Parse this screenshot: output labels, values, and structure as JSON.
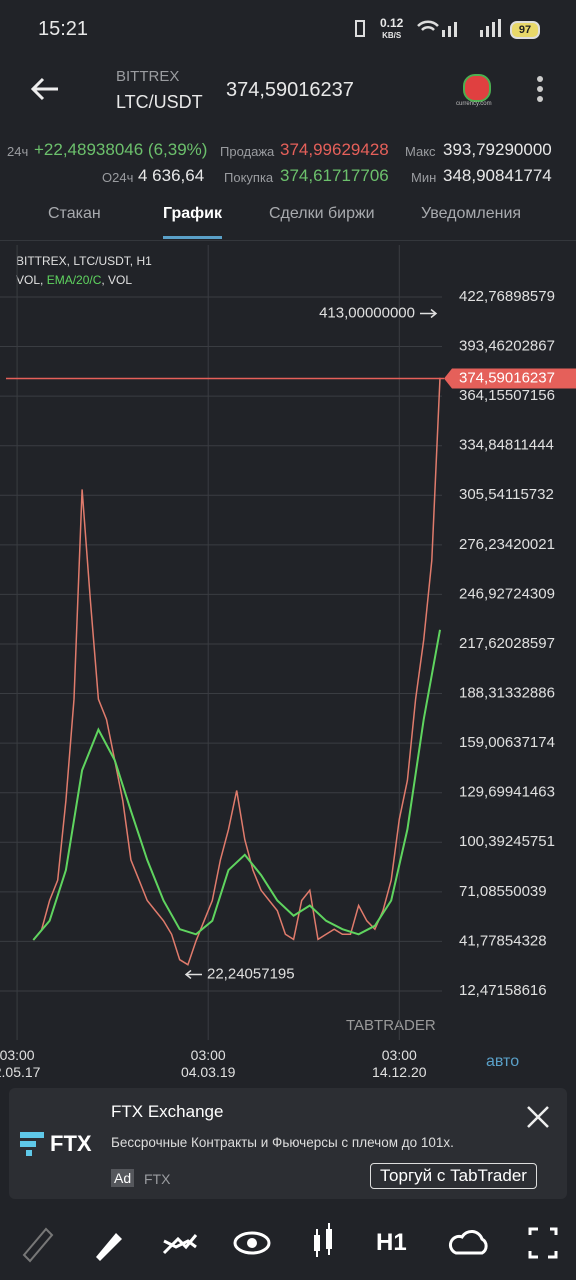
{
  "status": {
    "time": "15:21",
    "speed": "0.12",
    "speed_unit": "KB/S",
    "battery": "97"
  },
  "header": {
    "exchange": "BITTREX",
    "pair": "LTC/USDT",
    "price": "374,59016237",
    "logo_text": "currency.com"
  },
  "stats": {
    "change_label": "24ч",
    "change": "+22,48938046 (6,39%)",
    "sell_label": "Продажа",
    "sell": "374,99629428",
    "max_label": "Макс",
    "max": "393,79290000",
    "volume_label": "О24ч",
    "volume": "4 636,64",
    "buy_label": "Покупка",
    "buy": "374,61717706",
    "min_label": "Мин",
    "min": "348,90841774"
  },
  "tabs": {
    "items": [
      "Стакан",
      "График",
      "Сделки биржи",
      "Уведомления"
    ],
    "active": 1
  },
  "chart_data": {
    "type": "line",
    "legend_line1": "BITTREX, LTC/USDT, H1",
    "legend_vol": "VOL, ",
    "legend_ema": "EMA/20/C",
    "legend_vol2": ", VOL",
    "watermark": "TABTRADER",
    "scale_mode": "авто",
    "xlim": [
      -4.2,
      104.5
    ],
    "xticks": [
      {
        "value": 0,
        "label": "03:00\n2.05.17"
      },
      {
        "value": 47,
        "label": "03:00\n04.03.19"
      },
      {
        "value": 94,
        "label": "03:00\n14.12.20"
      }
    ],
    "ylim": [
      -16.5,
      453.5
    ],
    "yticks": [
      {
        "value": 422.76898579,
        "label": "422,76898579"
      },
      {
        "value": 393.46202867,
        "label": "393,46202867"
      },
      {
        "value": 364.15507156,
        "label": "364,15507156"
      },
      {
        "value": 334.84811444,
        "label": "334,84811444"
      },
      {
        "value": 305.54115732,
        "label": "305,54115732"
      },
      {
        "value": 276.23420021,
        "label": "276,23420021"
      },
      {
        "value": 246.92724309,
        "label": "246,92724309"
      },
      {
        "value": 217.62028597,
        "label": "217,62028597"
      },
      {
        "value": 188.31332886,
        "label": "188,31332886"
      },
      {
        "value": 159.00637174,
        "label": "159,00637174"
      },
      {
        "value": 129.69941463,
        "label": "129,69941463"
      },
      {
        "value": 100.39245751,
        "label": "100,39245751"
      },
      {
        "value": 71.08550039,
        "label": "71,08550039"
      },
      {
        "value": 41.77854328,
        "label": "41,77854328"
      },
      {
        "value": 12.47158616,
        "label": "12,47158616"
      }
    ],
    "grid": true,
    "series": [
      {
        "color": "#e07b6c",
        "x": [
          4,
          6,
          8,
          10,
          12,
          14,
          16,
          18,
          20,
          22,
          24,
          26,
          28,
          30,
          32,
          34,
          36,
          38,
          40,
          42,
          44,
          46,
          48,
          50,
          52,
          54,
          56,
          58,
          60,
          62,
          64,
          66,
          68,
          70,
          72,
          74,
          76,
          78,
          80,
          82,
          84,
          86,
          88,
          90,
          92,
          94,
          96,
          98,
          100,
          102,
          104
        ],
        "values": [
          42.6,
          48.5,
          66,
          78,
          125,
          185,
          309,
          244,
          185,
          173,
          149,
          125,
          90,
          78,
          66,
          60,
          54,
          46,
          31,
          28,
          42,
          54,
          66,
          90,
          108,
          131,
          102,
          84,
          72,
          66,
          60,
          46,
          43,
          66,
          72,
          43,
          46,
          49,
          46,
          46,
          63,
          54,
          49,
          60,
          78,
          114,
          137,
          185,
          220,
          267,
          375
        ]
      },
      {
        "color": "#5fd45f",
        "x": [
          4,
          8,
          12,
          16,
          20,
          24,
          28,
          32,
          36,
          40,
          44,
          48,
          52,
          56,
          60,
          64,
          68,
          72,
          76,
          80,
          84,
          88,
          92,
          96,
          100,
          104
        ],
        "values": [
          42.6,
          54,
          84,
          143,
          167,
          149,
          119,
          90,
          66,
          49,
          46,
          54,
          84,
          93,
          81,
          66,
          57,
          63,
          54,
          49,
          46,
          51,
          66,
          108,
          173,
          226
        ]
      }
    ],
    "high_marker": {
      "value": 413.0,
      "label": "413,00000000"
    },
    "low_marker": {
      "value": 22.24057195,
      "label": "22,24057195"
    },
    "current_price": {
      "value": 374.59016237,
      "label": "374,59016237"
    }
  },
  "ad": {
    "logo": "FTX",
    "title": "FTX Exchange",
    "text": "Бессрочные Контракты и Фьючерсы с плечом до 101х.",
    "badge": "Ad",
    "advertiser": "FTX",
    "button": "Торгуй с TabTrader"
  },
  "toolbar": {
    "timeframe": "H1"
  }
}
